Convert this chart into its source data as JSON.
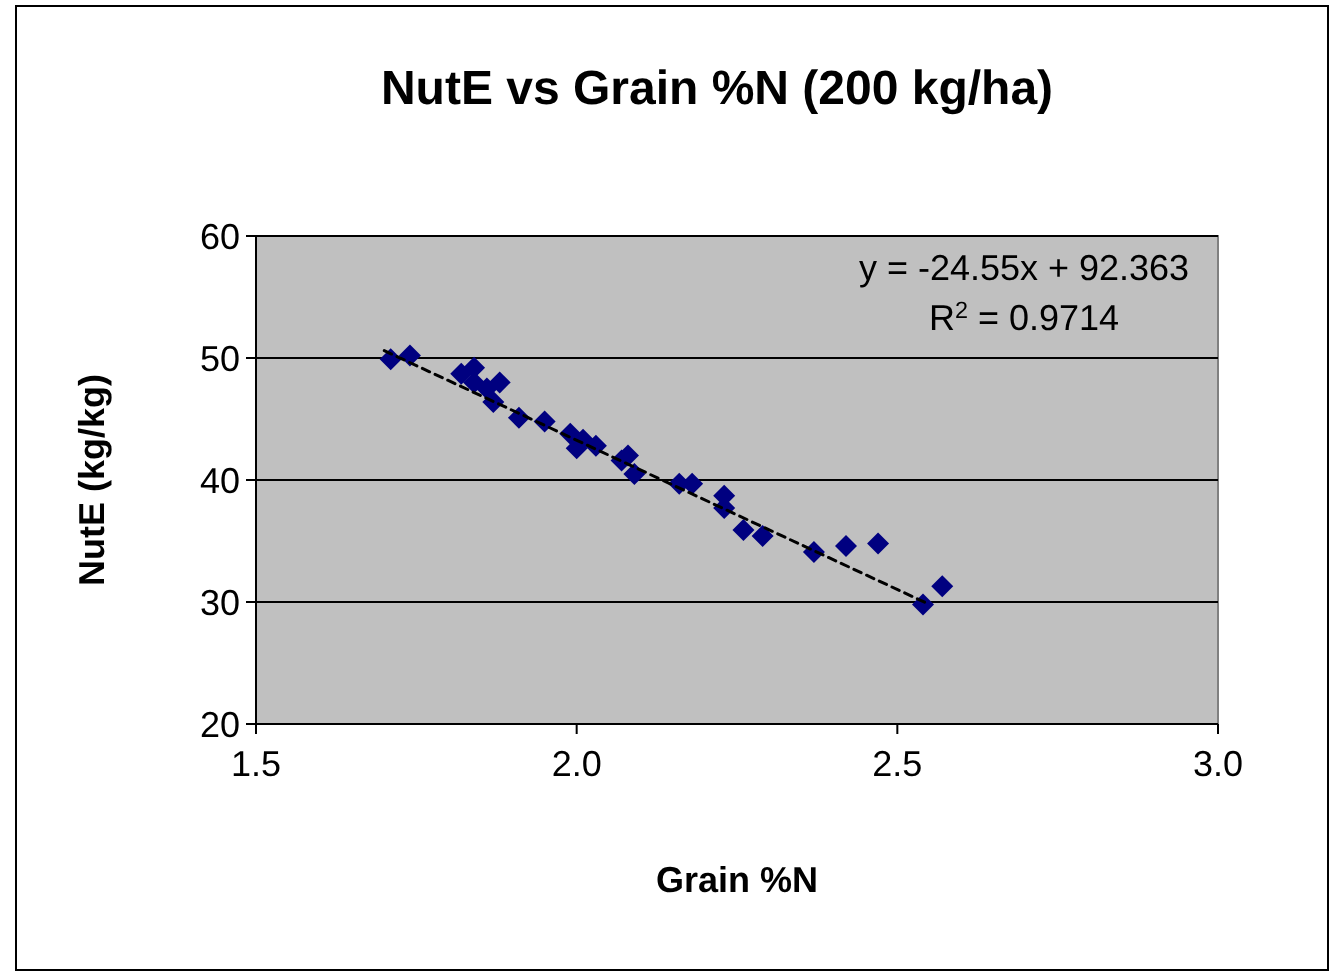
{
  "chart_data": {
    "type": "scatter",
    "title": "NutE vs Grain %N (200 kg/ha)",
    "xlabel": "Grain %N",
    "ylabel": "NutE (kg/kg)",
    "xlim": [
      1.5,
      3.0
    ],
    "xticks": [
      {
        "value": 1.5,
        "label": "1.5"
      },
      {
        "value": 2.0,
        "label": "2.0"
      },
      {
        "value": 2.5,
        "label": "2.5"
      },
      {
        "value": 3.0,
        "label": "3.0"
      }
    ],
    "ylim": [
      20,
      60
    ],
    "yticks": [
      20,
      30,
      40,
      50,
      60
    ],
    "grid": "y",
    "series": [
      {
        "color": "#000080",
        "marker": "diamond",
        "x": [
          1.71,
          1.74,
          1.82,
          1.84,
          1.84,
          1.86,
          1.88,
          1.87,
          1.91,
          1.95,
          1.99,
          2.01,
          2.0,
          2.03,
          2.08,
          2.07,
          2.09,
          2.16,
          2.18,
          2.23,
          2.23,
          2.26,
          2.29,
          2.37,
          2.42,
          2.47,
          2.54,
          2.57
        ],
        "values": [
          49.9,
          50.2,
          48.7,
          49.2,
          48.0,
          47.5,
          48.0,
          46.4,
          45.1,
          44.8,
          43.8,
          43.3,
          42.6,
          42.8,
          42.0,
          41.6,
          40.5,
          39.7,
          39.7,
          38.7,
          37.7,
          35.9,
          35.4,
          34.1,
          34.6,
          34.8,
          29.8,
          31.3
        ]
      },
      {
        "type": "line",
        "color": "#000000",
        "line_style": "dashed",
        "marker": "none",
        "x": [
          1.7,
          2.55
        ],
        "values": [
          50.6,
          29.8
        ]
      }
    ],
    "annotations": [
      "y = -24.55x + 92.363",
      "R$^{2}$ = 0.9714"
    ]
  }
}
